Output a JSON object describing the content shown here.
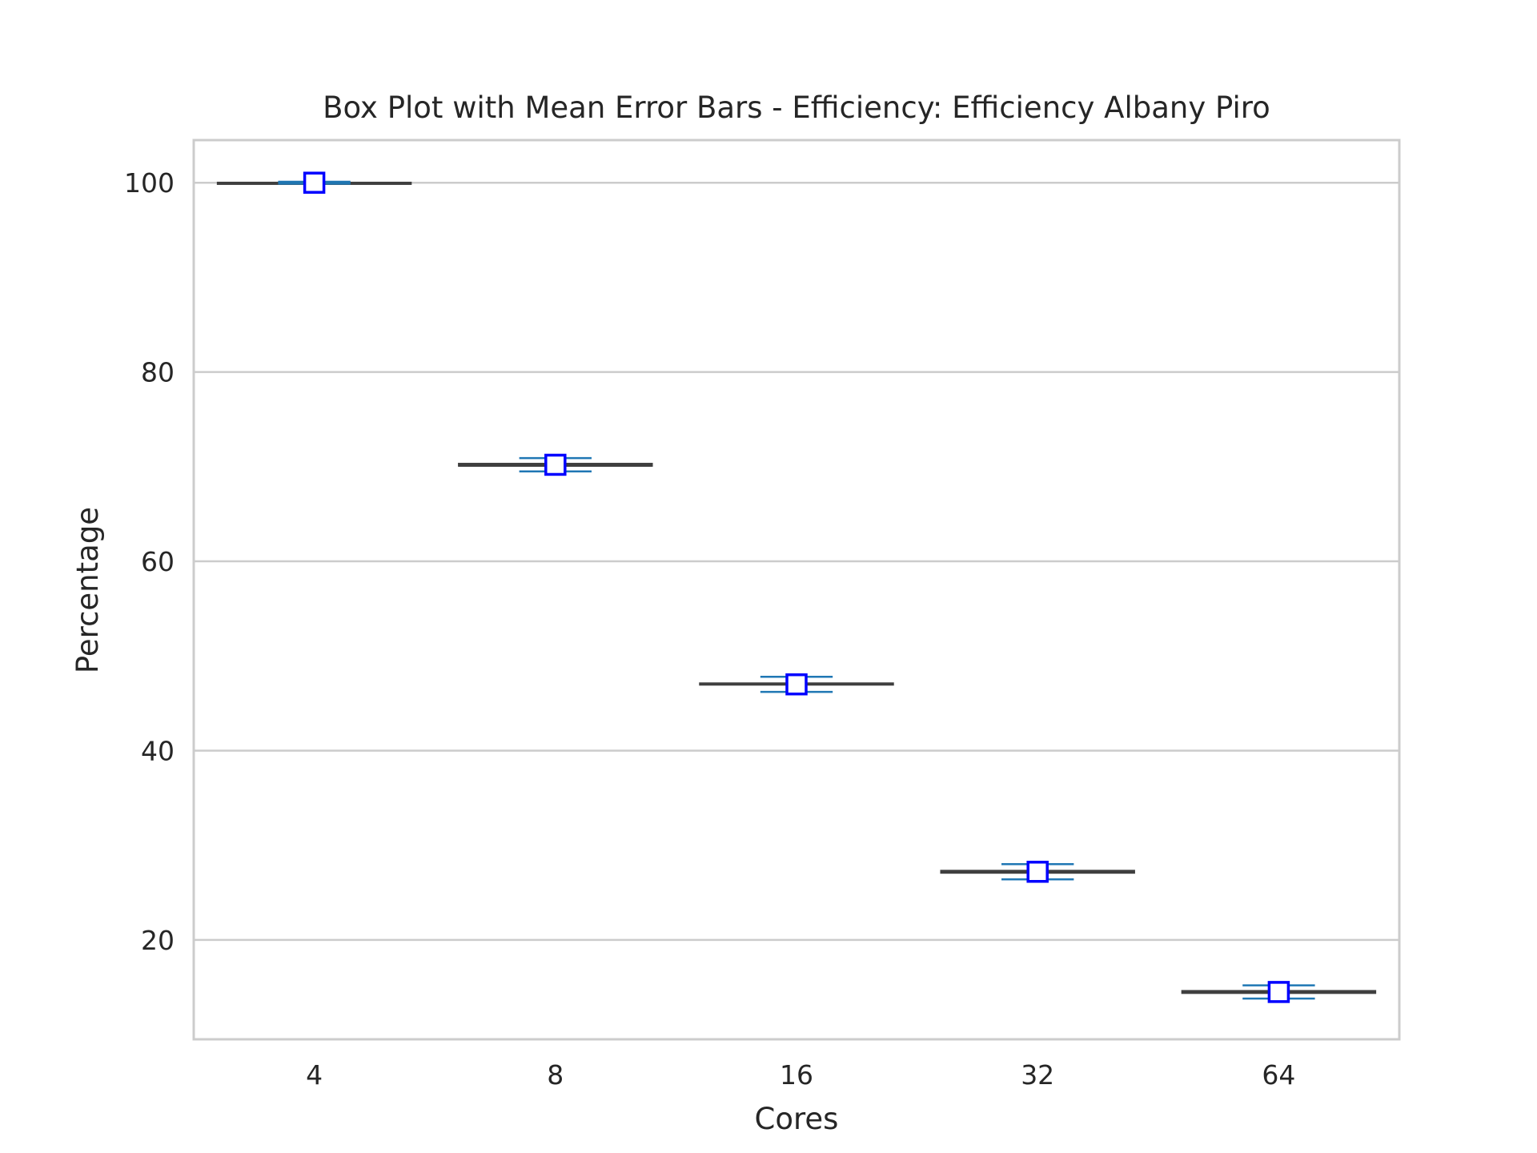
{
  "chart_data": {
    "type": "box",
    "title": "Box Plot with Mean Error Bars - Efficiency: Efficiency Albany Piro",
    "xlabel": "Cores",
    "ylabel": "Percentage",
    "categories": [
      "4",
      "8",
      "16",
      "32",
      "64"
    ],
    "ylim": [
      9.5,
      104.5
    ],
    "yticks": [
      20,
      40,
      60,
      80,
      100
    ],
    "grid": true,
    "boxes": [
      {
        "category": "4",
        "min": 100.0,
        "q1": 100.0,
        "median": 100.0,
        "q3": 100.0,
        "max": 100.0,
        "mean": 100.0,
        "err": 0.1
      },
      {
        "category": "8",
        "min": 70.1,
        "q1": 70.1,
        "median": 70.1,
        "q3": 70.3,
        "max": 70.3,
        "mean": 70.2,
        "err": 0.7
      },
      {
        "category": "16",
        "min": 47.0,
        "q1": 47.0,
        "median": 47.0,
        "q3": 47.1,
        "max": 47.1,
        "mean": 47.0,
        "err": 0.8
      },
      {
        "category": "32",
        "min": 27.1,
        "q1": 27.1,
        "median": 27.2,
        "q3": 27.3,
        "max": 27.3,
        "mean": 27.2,
        "err": 0.8
      },
      {
        "category": "64",
        "min": 14.4,
        "q1": 14.4,
        "median": 14.5,
        "q3": 14.6,
        "max": 14.6,
        "mean": 14.5,
        "err": 0.7
      }
    ],
    "colors": {
      "box_fill": "#c0504d",
      "box_edge": "#3f3f3f",
      "error_bar": "#1f77b4",
      "mean_marker_edge": "#0000ff",
      "mean_marker_fill": "#ffffff",
      "grid": "#cccccc",
      "frame": "#cccccc"
    }
  }
}
